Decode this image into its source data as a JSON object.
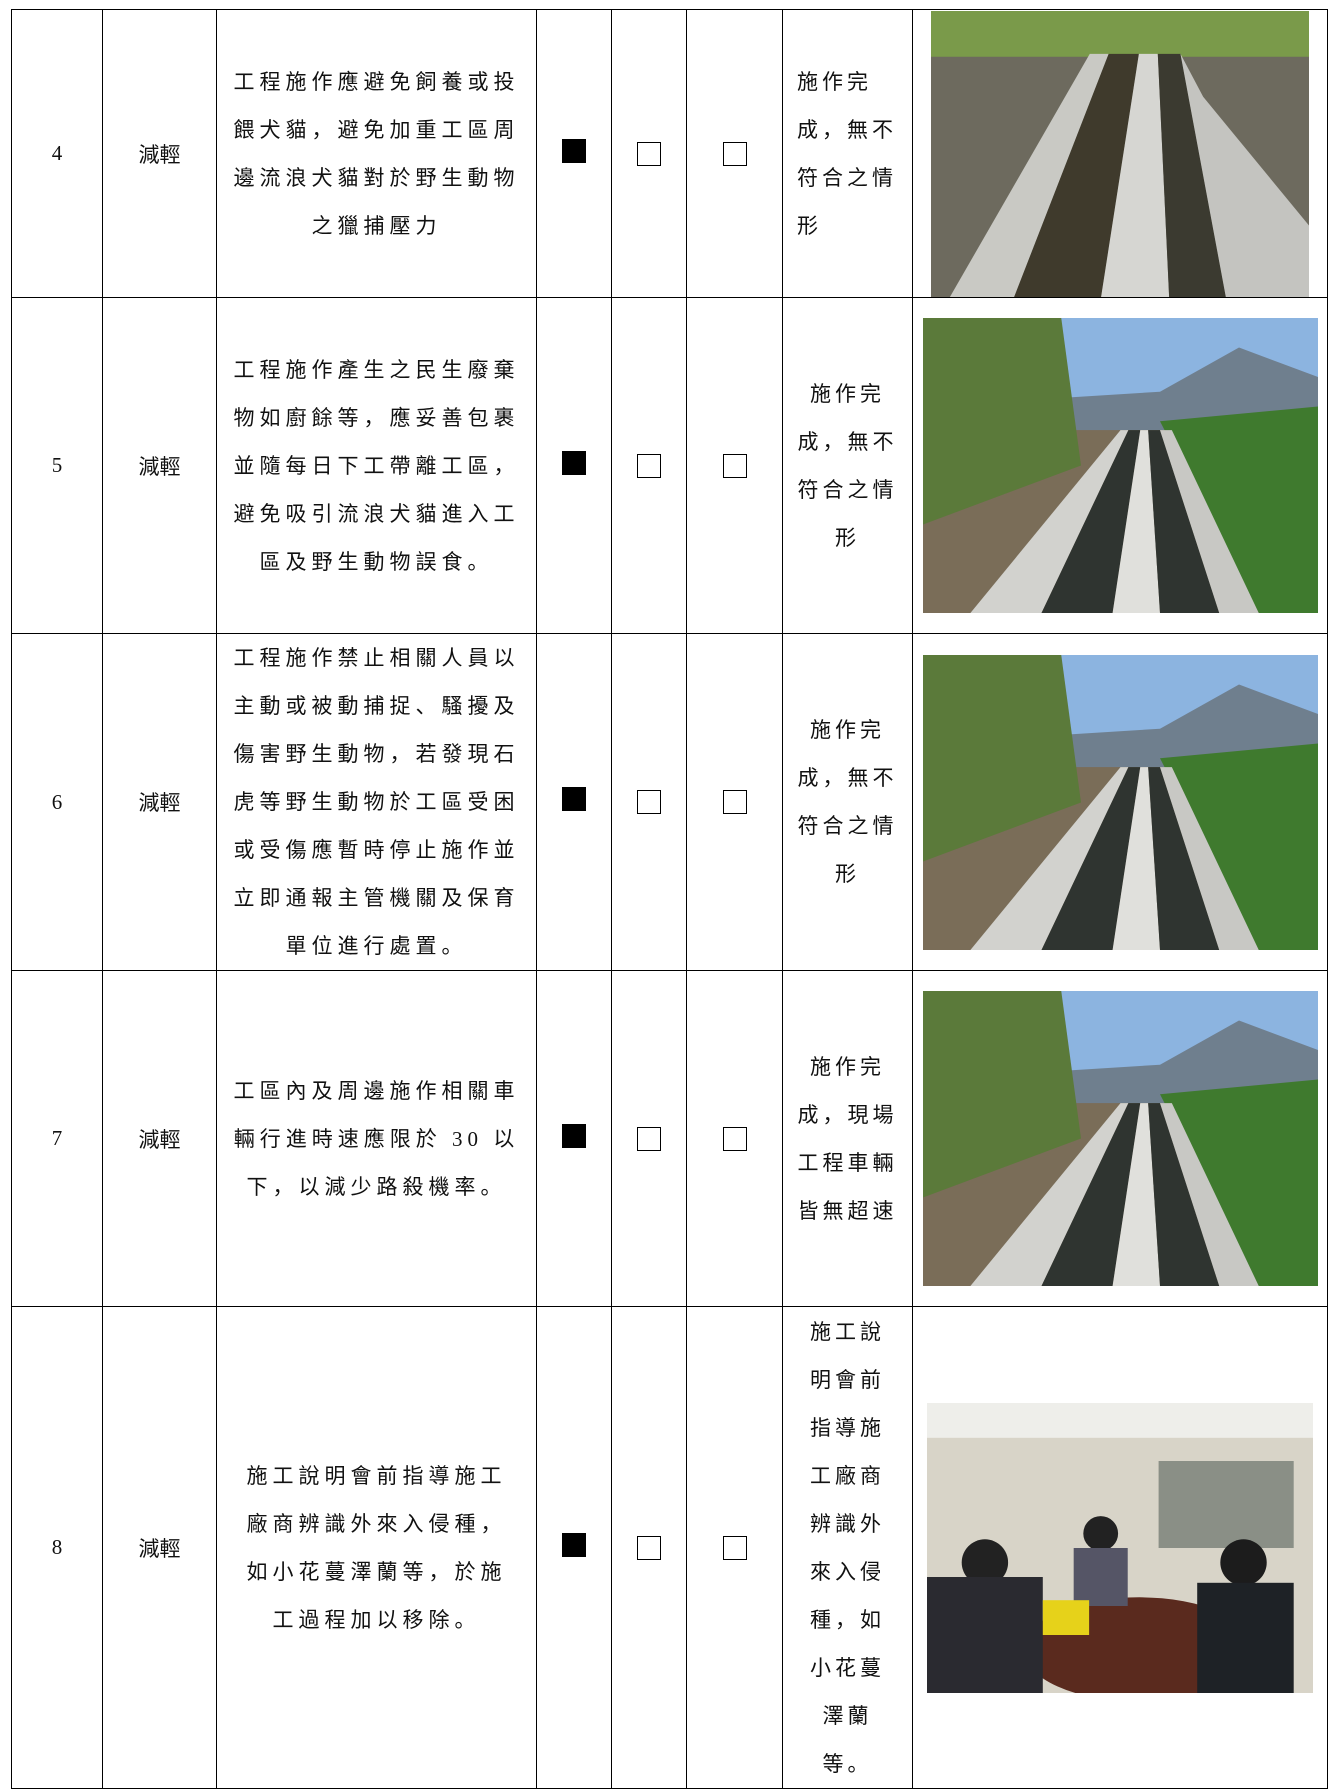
{
  "table": {
    "rows": [
      {
        "no": "4",
        "type": "減輕",
        "description": [
          "工程施作應避免飼養或投",
          "餵犬貓，避免加重工區周",
          "邊流浪犬貓對於野生動物",
          "之獵捕壓力"
        ],
        "checks": [
          true,
          false,
          false
        ],
        "result": [
          "施作完",
          "成，無不",
          "符合之情",
          "形"
        ]
      },
      {
        "no": "5",
        "type": "減輕",
        "description": [
          "工程施作產生之民生廢棄",
          "物如廚餘等，應妥善包裹",
          "並隨每日下工帶離工區，",
          "避免吸引流浪犬貓進入工",
          "區及野生動物誤食。"
        ],
        "checks": [
          true,
          false,
          false
        ],
        "result": [
          "施作完",
          "成，無不",
          "符合之情",
          "形"
        ]
      },
      {
        "no": "6",
        "type": "減輕",
        "description": [
          "工程施作禁止相關人員以",
          "主動或被動捕捉、騷擾及",
          "傷害野生動物，若發現石",
          "虎等野生動物於工區受困",
          "或受傷應暫時停止施作並",
          "立即通報主管機關及保育",
          "單位進行處置。"
        ],
        "checks": [
          true,
          false,
          false
        ],
        "result": [
          "施作完",
          "成，無不",
          "符合之情",
          "形"
        ]
      },
      {
        "no": "7",
        "type": "減輕",
        "description": [
          "工區內及周邊施作相關車",
          "輛行進時速應限於 30 以",
          "下，以減少路殺機率。"
        ],
        "checks": [
          true,
          false,
          false
        ],
        "result": [
          "施作完",
          "成，現場",
          "工程車輛",
          "皆無超速"
        ]
      },
      {
        "no": "8",
        "type": "減輕",
        "description": [
          "施工說明會前指導施工",
          "廠商辨識外來入侵種，",
          "如小花蔓澤蘭等，於施",
          "工過程加以移除。"
        ],
        "checks": [
          true,
          false,
          false
        ],
        "result": [
          "施工說",
          "明會前",
          "指導施",
          "工廠商",
          "辨識外",
          "來入侵",
          "種，如",
          "小花蔓",
          "澤蘭",
          "等。"
        ]
      }
    ]
  }
}
